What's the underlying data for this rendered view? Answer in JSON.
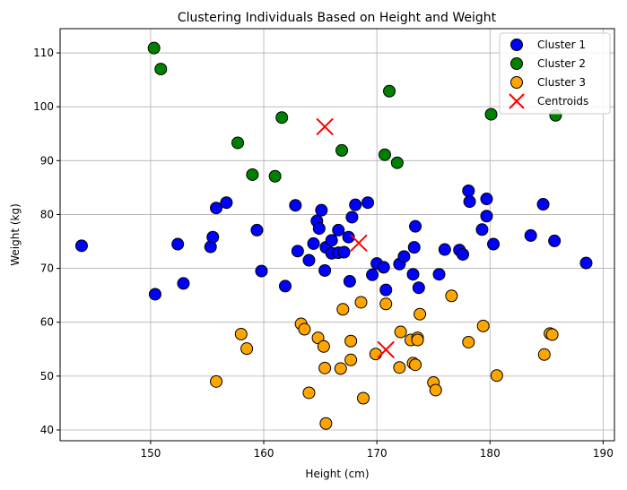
{
  "chart_data": {
    "type": "scatter",
    "title": "Clustering Individuals Based on Height and Weight",
    "xlabel": "Height (cm)",
    "ylabel": "Weight (kg)",
    "xlim": [
      142,
      191
    ],
    "ylim": [
      38,
      114.5
    ],
    "xticks": [
      150,
      160,
      170,
      180,
      190
    ],
    "yticks": [
      40,
      50,
      60,
      70,
      80,
      90,
      100,
      110
    ],
    "grid": true,
    "legend": "top-right",
    "series": [
      {
        "name": "Cluster 1",
        "color": "#0000ff",
        "marker": "circle",
        "points": [
          [
            143.9,
            74.2
          ],
          [
            150.4,
            65.2
          ],
          [
            152.4,
            74.5
          ],
          [
            152.9,
            67.2
          ],
          [
            155.3,
            74.0
          ],
          [
            155.5,
            75.8
          ],
          [
            155.8,
            81.2
          ],
          [
            156.7,
            82.2
          ],
          [
            159.4,
            77.1
          ],
          [
            159.8,
            69.5
          ],
          [
            161.9,
            66.7
          ],
          [
            162.8,
            81.7
          ],
          [
            163.0,
            73.2
          ],
          [
            164.0,
            71.5
          ],
          [
            164.4,
            74.6
          ],
          [
            164.7,
            78.8
          ],
          [
            164.9,
            77.4
          ],
          [
            165.1,
            80.8
          ],
          [
            165.4,
            69.6
          ],
          [
            165.5,
            73.9
          ],
          [
            166.0,
            72.8
          ],
          [
            166.0,
            75.2
          ],
          [
            166.6,
            72.9
          ],
          [
            166.6,
            77.1
          ],
          [
            167.1,
            73.0
          ],
          [
            167.5,
            75.8
          ],
          [
            167.6,
            67.6
          ],
          [
            167.8,
            79.5
          ],
          [
            168.1,
            81.8
          ],
          [
            169.2,
            82.2
          ],
          [
            169.6,
            68.8
          ],
          [
            170.0,
            70.9
          ],
          [
            170.6,
            70.2
          ],
          [
            170.8,
            66.0
          ],
          [
            172.0,
            70.8
          ],
          [
            172.4,
            72.2
          ],
          [
            173.2,
            68.9
          ],
          [
            173.3,
            73.9
          ],
          [
            173.4,
            77.8
          ],
          [
            173.7,
            66.4
          ],
          [
            175.5,
            68.9
          ],
          [
            176.0,
            73.5
          ],
          [
            177.3,
            73.4
          ],
          [
            177.6,
            72.6
          ],
          [
            178.1,
            84.4
          ],
          [
            178.2,
            82.4
          ],
          [
            179.3,
            77.2
          ],
          [
            179.7,
            82.9
          ],
          [
            179.7,
            79.7
          ],
          [
            180.3,
            74.5
          ],
          [
            183.6,
            76.1
          ],
          [
            184.7,
            81.9
          ],
          [
            185.7,
            75.1
          ],
          [
            188.5,
            71.0
          ]
        ]
      },
      {
        "name": "Cluster 2",
        "color": "#008000",
        "marker": "circle",
        "points": [
          [
            150.3,
            110.9
          ],
          [
            150.9,
            107.0
          ],
          [
            157.7,
            93.3
          ],
          [
            159.0,
            87.4
          ],
          [
            161.0,
            87.1
          ],
          [
            161.6,
            98.0
          ],
          [
            166.9,
            91.9
          ],
          [
            170.7,
            91.1
          ],
          [
            171.1,
            102.9
          ],
          [
            171.8,
            89.6
          ],
          [
            180.1,
            98.6
          ],
          [
            185.8,
            98.4
          ]
        ]
      },
      {
        "name": "Cluster 3",
        "color": "#ffa500",
        "marker": "circle",
        "points": [
          [
            155.8,
            49.0
          ],
          [
            158.0,
            57.8
          ],
          [
            158.5,
            55.1
          ],
          [
            163.3,
            59.7
          ],
          [
            163.6,
            58.7
          ],
          [
            164.0,
            46.9
          ],
          [
            164.8,
            57.1
          ],
          [
            165.3,
            55.5
          ],
          [
            165.4,
            51.5
          ],
          [
            165.5,
            41.2
          ],
          [
            166.8,
            51.4
          ],
          [
            167.0,
            62.4
          ],
          [
            167.7,
            56.5
          ],
          [
            167.7,
            53.0
          ],
          [
            168.6,
            63.7
          ],
          [
            168.8,
            45.9
          ],
          [
            169.9,
            54.1
          ],
          [
            170.8,
            63.4
          ],
          [
            172.0,
            51.6
          ],
          [
            172.1,
            58.2
          ],
          [
            173.0,
            56.7
          ],
          [
            173.2,
            52.4
          ],
          [
            173.4,
            52.1
          ],
          [
            173.6,
            57.1
          ],
          [
            173.6,
            56.7
          ],
          [
            173.8,
            61.5
          ],
          [
            175.0,
            48.8
          ],
          [
            175.2,
            47.4
          ],
          [
            176.6,
            64.9
          ],
          [
            178.1,
            56.3
          ],
          [
            179.4,
            59.3
          ],
          [
            180.6,
            50.1
          ],
          [
            184.8,
            54.0
          ],
          [
            185.3,
            57.9
          ],
          [
            185.5,
            57.7
          ]
        ]
      },
      {
        "name": "Centroids",
        "color": "#ff0000",
        "marker": "x",
        "points": [
          [
            165.4,
            96.3
          ],
          [
            168.4,
            74.7
          ],
          [
            170.8,
            54.9
          ]
        ]
      }
    ]
  }
}
